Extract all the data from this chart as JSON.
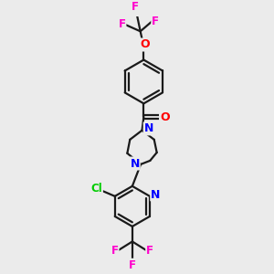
{
  "background_color": "#ebebeb",
  "bond_color": "#1a1a1a",
  "atom_colors": {
    "F": "#ff00cc",
    "O": "#ff0000",
    "N": "#0000ff",
    "Cl": "#00cc00",
    "C": "#1a1a1a"
  },
  "figsize": [
    3.0,
    3.0
  ],
  "dpi": 100
}
